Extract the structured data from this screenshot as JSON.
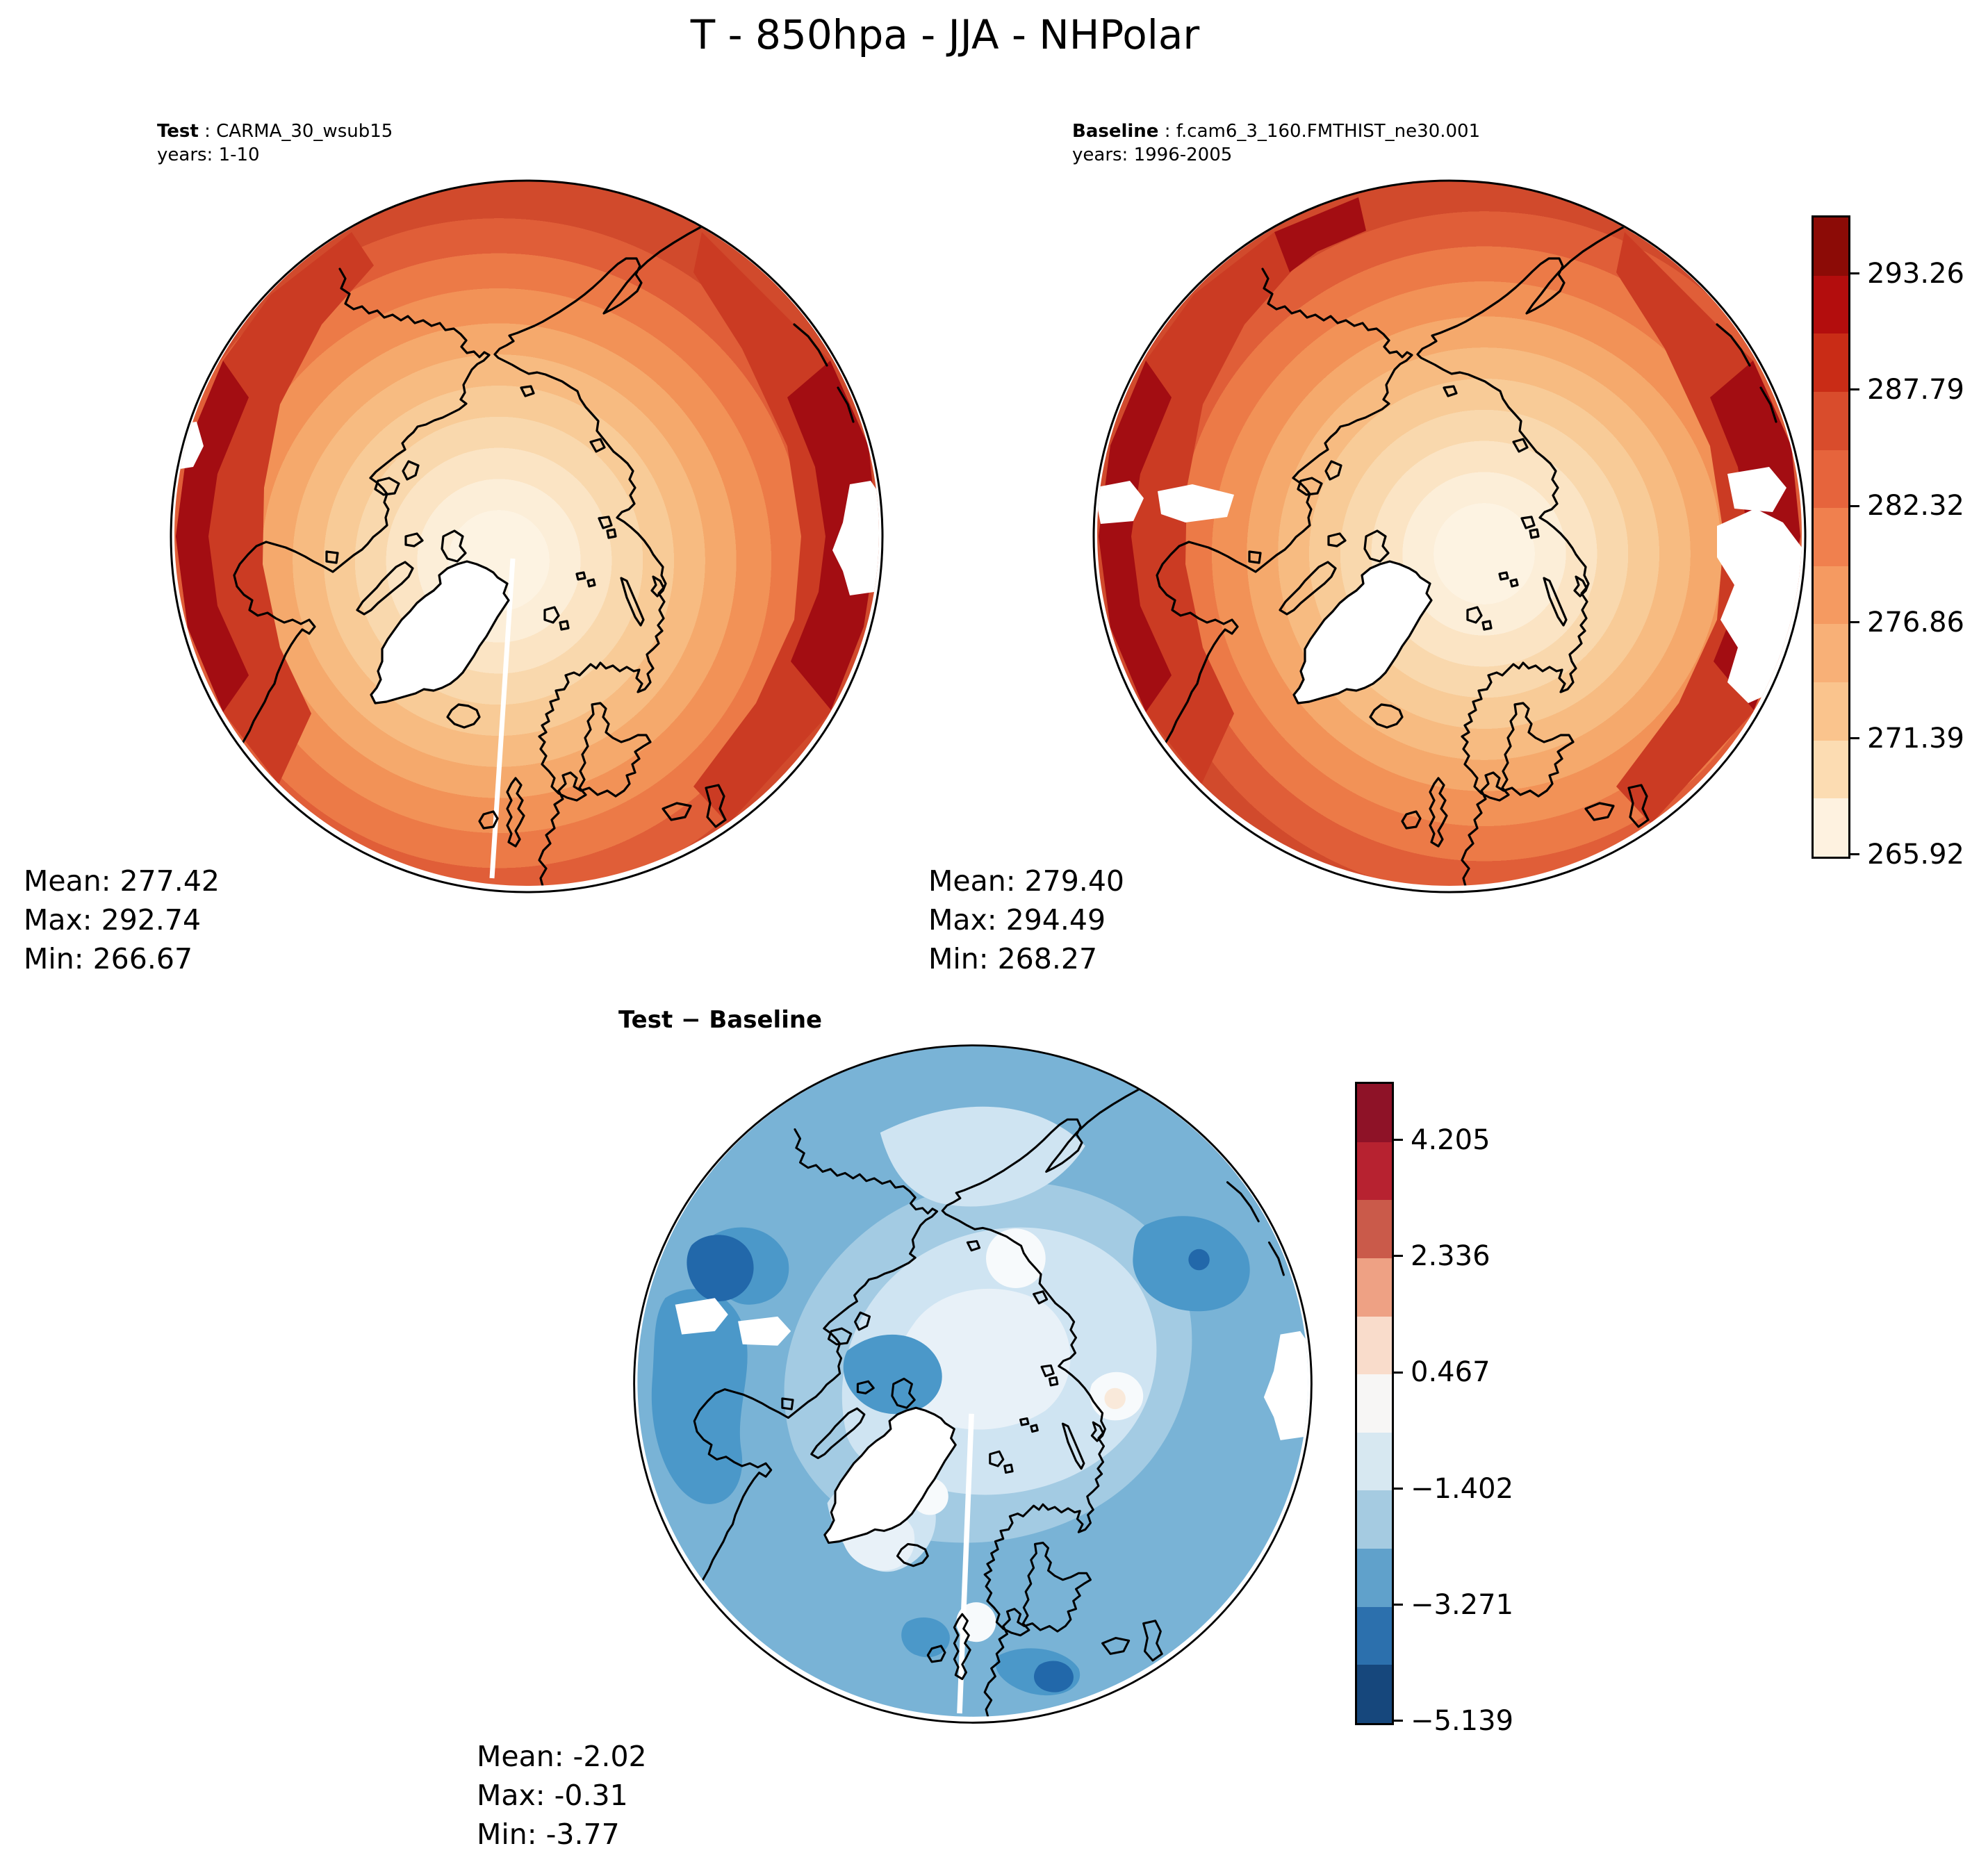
{
  "title": "T - 850hpa - JJA - NHPolar",
  "panels": [
    {
      "label_bold": "Test",
      "label_sep": " : ",
      "label_name": "CARMA_30_wsub15",
      "years": "years: 1-10",
      "stats": [
        "Mean: 277.42",
        "Max: 292.74",
        "Min: 266.67"
      ]
    },
    {
      "label_bold": "Baseline",
      "label_sep": " : ",
      "label_name": "f.cam6_3_160.FMTHIST_ne30.001",
      "years": "years: 1996-2005",
      "stats": [
        "Mean: 279.40",
        "Max: 294.49",
        "Min: 268.27"
      ]
    },
    {
      "title": "Test − Baseline",
      "stats": [
        "Mean: -2.02",
        "Max: -0.31",
        "Min: -3.77"
      ]
    }
  ],
  "colorbars": [
    {
      "ticks": [
        "293.26",
        "287.79",
        "282.32",
        "276.86",
        "271.39",
        "265.92"
      ],
      "colors_top_to_bottom": [
        "#8c0b06",
        "#b30d0d",
        "#c92c16",
        "#d94c2c",
        "#e6643c",
        "#f0804e",
        "#f59a61",
        "#f8b077",
        "#fac48d",
        "#fcdcb2",
        "#fef2e0"
      ]
    },
    {
      "ticks": [
        "4.205",
        "2.336",
        "0.467",
        "−1.402",
        "−3.271",
        "−5.139"
      ],
      "colors_top_to_bottom": [
        "#8e1227",
        "#b72230",
        "#ca5a4a",
        "#eea184",
        "#f9dccb",
        "#f7f6f5",
        "#d7e8f1",
        "#a5cbe1",
        "#60a1cb",
        "#2c70ad",
        "#16477c"
      ]
    }
  ],
  "chart_data": [
    {
      "type": "heatmap",
      "subtype": "filled-contour polar map",
      "projection": "north polar stereographic",
      "variable": "T",
      "level": "850hpa",
      "season": "JJA",
      "region": "NHPolar",
      "panel": "Test: CARMA_30_wsub15 (years 1-10)",
      "stats": {
        "mean": 277.42,
        "max": 292.74,
        "min": 266.67
      },
      "colorbar": {
        "colormap": "OrRd-like sequential",
        "n_bins": 11,
        "tick_values": [
          293.26,
          287.79,
          282.32,
          276.86,
          271.39,
          265.92
        ],
        "range": [
          265.92,
          295.99
        ]
      },
      "notes": "Cream/white minimum over the pole and Greenland; values increase toward the map rim; darkest reds at left (North Pacific) and right rims; white = masked high topography (Greenland, Tibet); thin white seam along 0° meridian to bottom."
    },
    {
      "type": "heatmap",
      "subtype": "filled-contour polar map",
      "projection": "north polar stereographic",
      "variable": "T",
      "level": "850hpa",
      "season": "JJA",
      "region": "NHPolar",
      "panel": "Baseline: f.cam6_3_160.FMTHIST_ne30.001 (years 1996-2005)",
      "stats": {
        "mean": 279.4,
        "max": 294.49,
        "min": 268.27
      },
      "colorbar": {
        "colormap": "OrRd-like sequential",
        "n_bins": 11,
        "tick_values": [
          293.26,
          287.79,
          282.32,
          276.86,
          271.39,
          265.92
        ],
        "range": [
          265.92,
          295.99
        ]
      },
      "notes": "Same pattern as Test; masked white areas at left rim (Alaska ranges), right rim (Rockies/Tibet) and Greenland."
    },
    {
      "type": "heatmap",
      "subtype": "filled-contour polar difference map",
      "projection": "north polar stereographic",
      "panel": "Test − Baseline",
      "stats": {
        "mean": -2.02,
        "max": -0.31,
        "min": -3.77
      },
      "colorbar": {
        "colormap": "RdBu_r diverging",
        "n_bins": 11,
        "tick_values": [
          4.205,
          2.336,
          0.467,
          -1.402,
          -3.271,
          -5.139
        ],
        "range": [
          -5.139,
          5.139
        ]
      },
      "notes": "Entire field negative (blues). Darkest blues (≈ -4 to -5) over Bering Sea/Alaska and near Canadian archipelago; palest values (≈ 0 to -0.5) near the pole and north of Greenland; white = masked topography."
    }
  ]
}
